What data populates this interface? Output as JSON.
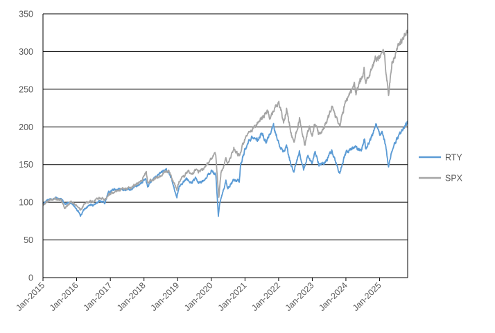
{
  "chart_data": {
    "type": "line",
    "title": "",
    "xlabel": "",
    "ylabel": "",
    "ylim": [
      0,
      350
    ],
    "yticks": [
      0,
      50,
      100,
      150,
      200,
      250,
      300,
      350
    ],
    "xlim": [
      "2015-01-01",
      "2025-11-01"
    ],
    "xticks": [
      "Jan-2015",
      "Jan-2016",
      "Jan-2017",
      "Jan-2018",
      "Jan-2019",
      "Jan-2020",
      "Jan-2021",
      "Jan-2022",
      "Jan-2023",
      "Jan-2024",
      "Jan-2025"
    ],
    "grid": "horizontal",
    "legend_position": "right",
    "series": [
      {
        "name": "RTY",
        "color": "#5b9bd5",
        "points": [
          [
            "2015-01-01",
            98
          ],
          [
            "2015-03-01",
            103
          ],
          [
            "2015-06-01",
            106
          ],
          [
            "2015-07-15",
            104
          ],
          [
            "2015-09-01",
            97
          ],
          [
            "2015-11-01",
            100
          ],
          [
            "2016-01-15",
            88
          ],
          [
            "2016-02-11",
            82
          ],
          [
            "2016-04-01",
            92
          ],
          [
            "2016-06-01",
            97
          ],
          [
            "2016-07-01",
            95
          ],
          [
            "2016-09-01",
            102
          ],
          [
            "2016-11-01",
            99
          ],
          [
            "2016-12-15",
            114
          ],
          [
            "2017-03-01",
            117
          ],
          [
            "2017-06-01",
            117
          ],
          [
            "2017-08-15",
            116
          ],
          [
            "2017-10-01",
            122
          ],
          [
            "2017-12-01",
            125
          ],
          [
            "2018-01-20",
            131
          ],
          [
            "2018-02-10",
            122
          ],
          [
            "2018-06-01",
            137
          ],
          [
            "2018-08-31",
            143
          ],
          [
            "2018-10-01",
            139
          ],
          [
            "2018-11-01",
            128
          ],
          [
            "2018-12-24",
            107
          ],
          [
            "2019-01-15",
            120
          ],
          [
            "2019-04-01",
            131
          ],
          [
            "2019-06-01",
            126
          ],
          [
            "2019-07-15",
            132
          ],
          [
            "2019-08-15",
            125
          ],
          [
            "2019-10-01",
            128
          ],
          [
            "2019-12-31",
            141
          ],
          [
            "2020-01-20",
            140
          ],
          [
            "2020-02-20",
            137
          ],
          [
            "2020-03-18",
            82
          ],
          [
            "2020-04-01",
            98
          ],
          [
            "2020-06-08",
            128
          ],
          [
            "2020-06-30",
            118
          ],
          [
            "2020-09-01",
            130
          ],
          [
            "2020-10-31",
            128
          ],
          [
            "2020-11-15",
            150
          ],
          [
            "2020-12-31",
            170
          ],
          [
            "2021-03-15",
            188
          ],
          [
            "2021-05-15",
            182
          ],
          [
            "2021-07-01",
            192
          ],
          [
            "2021-08-15",
            180
          ],
          [
            "2021-11-08",
            201
          ],
          [
            "2021-12-20",
            184
          ],
          [
            "2022-01-15",
            172
          ],
          [
            "2022-03-01",
            168
          ],
          [
            "2022-03-28",
            175
          ],
          [
            "2022-05-15",
            148
          ],
          [
            "2022-06-16",
            142
          ],
          [
            "2022-08-15",
            166
          ],
          [
            "2022-09-30",
            143
          ],
          [
            "2022-11-15",
            160
          ],
          [
            "2022-12-30",
            150
          ],
          [
            "2023-02-01",
            168
          ],
          [
            "2023-03-15",
            150
          ],
          [
            "2023-05-15",
            152
          ],
          [
            "2023-07-31",
            168
          ],
          [
            "2023-10-27",
            138
          ],
          [
            "2023-12-31",
            166
          ],
          [
            "2024-03-31",
            173
          ],
          [
            "2024-06-15",
            168
          ],
          [
            "2024-07-20",
            185
          ],
          [
            "2024-08-05",
            170
          ],
          [
            "2024-11-25",
            202
          ],
          [
            "2024-12-31",
            190
          ],
          [
            "2025-02-01",
            192
          ],
          [
            "2025-03-15",
            170
          ],
          [
            "2025-04-08",
            147
          ],
          [
            "2025-05-15",
            170
          ],
          [
            "2025-07-15",
            185
          ],
          [
            "2025-09-15",
            198
          ],
          [
            "2025-10-31",
            205
          ]
        ]
      },
      {
        "name": "SPX",
        "color": "#a5a5a5",
        "points": [
          [
            "2015-01-01",
            97
          ],
          [
            "2015-03-01",
            102
          ],
          [
            "2015-05-20",
            104
          ],
          [
            "2015-07-15",
            103
          ],
          [
            "2015-08-25",
            92
          ],
          [
            "2015-11-01",
            101
          ],
          [
            "2016-01-15",
            94
          ],
          [
            "2016-02-11",
            90
          ],
          [
            "2016-04-01",
            99
          ],
          [
            "2016-06-01",
            102
          ],
          [
            "2016-07-01",
            101
          ],
          [
            "2016-09-01",
            106
          ],
          [
            "2016-11-01",
            104
          ],
          [
            "2016-12-15",
            110
          ],
          [
            "2017-03-01",
            115
          ],
          [
            "2017-06-01",
            118
          ],
          [
            "2017-08-15",
            119
          ],
          [
            "2017-10-01",
            124
          ],
          [
            "2017-12-01",
            128
          ],
          [
            "2018-01-26",
            140
          ],
          [
            "2018-02-08",
            127
          ],
          [
            "2018-06-01",
            133
          ],
          [
            "2018-09-20",
            142
          ],
          [
            "2018-10-01",
            140
          ],
          [
            "2018-11-01",
            132
          ],
          [
            "2018-12-24",
            116
          ],
          [
            "2019-01-15",
            128
          ],
          [
            "2019-04-30",
            142
          ],
          [
            "2019-06-03",
            135
          ],
          [
            "2019-07-26",
            147
          ],
          [
            "2019-08-15",
            140
          ],
          [
            "2019-10-01",
            143
          ],
          [
            "2019-12-31",
            158
          ],
          [
            "2020-02-19",
            164
          ],
          [
            "2020-03-23",
            106
          ],
          [
            "2020-04-15",
            138
          ],
          [
            "2020-06-08",
            157
          ],
          [
            "2020-06-30",
            151
          ],
          [
            "2020-09-02",
            171
          ],
          [
            "2020-10-31",
            162
          ],
          [
            "2020-12-31",
            184
          ],
          [
            "2021-03-15",
            195
          ],
          [
            "2021-05-15",
            205
          ],
          [
            "2021-07-01",
            212
          ],
          [
            "2021-09-02",
            221
          ],
          [
            "2021-10-04",
            210
          ],
          [
            "2021-11-15",
            225
          ],
          [
            "2022-01-03",
            232
          ],
          [
            "2022-02-24",
            206
          ],
          [
            "2022-03-28",
            222
          ],
          [
            "2022-05-20",
            190
          ],
          [
            "2022-06-16",
            180
          ],
          [
            "2022-08-16",
            212
          ],
          [
            "2022-10-12",
            176
          ],
          [
            "2022-11-30",
            200
          ],
          [
            "2022-12-30",
            188
          ],
          [
            "2023-02-01",
            205
          ],
          [
            "2023-03-13",
            190
          ],
          [
            "2023-05-15",
            200
          ],
          [
            "2023-07-31",
            226
          ],
          [
            "2023-10-27",
            202
          ],
          [
            "2023-12-31",
            235
          ],
          [
            "2024-03-31",
            256
          ],
          [
            "2024-04-19",
            244
          ],
          [
            "2024-07-16",
            275
          ],
          [
            "2024-08-05",
            258
          ],
          [
            "2024-11-15",
            290
          ],
          [
            "2024-12-31",
            290
          ],
          [
            "2025-02-19",
            298
          ],
          [
            "2025-03-15",
            270
          ],
          [
            "2025-04-08",
            243
          ],
          [
            "2025-05-15",
            283
          ],
          [
            "2025-07-15",
            305
          ],
          [
            "2025-09-15",
            318
          ],
          [
            "2025-10-31",
            326
          ]
        ]
      }
    ]
  }
}
